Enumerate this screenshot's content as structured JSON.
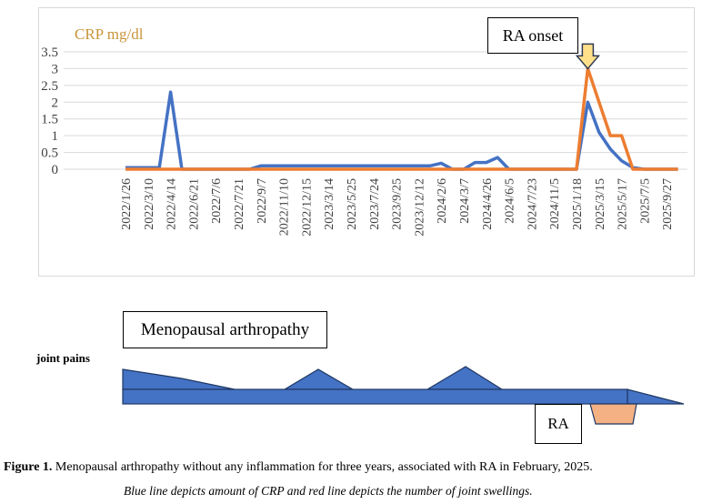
{
  "chart_data": {
    "type": "line",
    "title": "",
    "ylabel": "CRP mg/dl",
    "xlabel": "",
    "ylim": [
      0,
      3.5
    ],
    "yticks": [
      "0",
      "0.5",
      "1",
      "1.5",
      "2",
      "2.5",
      "3",
      "3.5"
    ],
    "ytick_values": [
      0,
      0.5,
      1,
      1.5,
      2,
      2.5,
      3,
      3.5
    ],
    "grid": true,
    "x_labels": [
      "2022/1/26",
      "2022/3/10",
      "2022/4/14",
      "2022/6/21",
      "2022/7/6",
      "2022/7/21",
      "2022/9/7",
      "2022/11/10",
      "2022/12/15",
      "2023/3/14",
      "2023/5/25",
      "2023/7/24",
      "2023/9/25",
      "2023/12/12",
      "2024/2/6",
      "2024/3/7",
      "2024/4/26",
      "2024/6/5",
      "2024/7/23",
      "2024/11/5",
      "2025/1/18",
      "2025/3/15",
      "2025/5/17",
      "2025/7/5",
      "2025/9/27"
    ],
    "points_per_label": 2,
    "series": [
      {
        "name": "CRP",
        "color": "#4472c4",
        "values": [
          0.05,
          0.05,
          0.05,
          0.05,
          2.3,
          0,
          0,
          0,
          0,
          0,
          0,
          0,
          0.1,
          0.1,
          0.1,
          0.1,
          0.1,
          0.1,
          0.1,
          0.1,
          0.1,
          0.1,
          0.1,
          0.1,
          0.1,
          0.1,
          0.1,
          0.1,
          0.18,
          0,
          0,
          0.2,
          0.2,
          0.35,
          0,
          0,
          0,
          0,
          0,
          0,
          0,
          2.0,
          1.1,
          0.6,
          0.25,
          0.05,
          0,
          0,
          0,
          0
        ]
      },
      {
        "name": "joint swellings",
        "color": "#ed7d31",
        "values": [
          0,
          0,
          0,
          0,
          0,
          0,
          0,
          0,
          0,
          0,
          0,
          0,
          0,
          0,
          0,
          0,
          0,
          0,
          0,
          0,
          0,
          0,
          0,
          0,
          0,
          0,
          0,
          0,
          0,
          0,
          0,
          0,
          0,
          0,
          0,
          0,
          0,
          0,
          0,
          0,
          0,
          3.0,
          2.0,
          1.0,
          1.0,
          0,
          0,
          0,
          0,
          0
        ]
      }
    ],
    "annotations": [
      {
        "text": "RA onset",
        "marker": "down-arrow",
        "at_point": 41,
        "arrow_color": "#ffe08a"
      }
    ]
  },
  "diagram": {
    "disease_label": "Menopausal arthropathy",
    "pain_label": "joint pains",
    "ra_label": "RA",
    "bar_color": "#4472c4",
    "ra_color": "#f4b183"
  },
  "caption": {
    "figure_label": "Figure 1.",
    "text": " Menopausal arthropathy without any inflammation for three years, associated with RA in February, 2025.",
    "sub": "Blue line depicts amount of CRP and red line depicts the number of joint swellings."
  }
}
